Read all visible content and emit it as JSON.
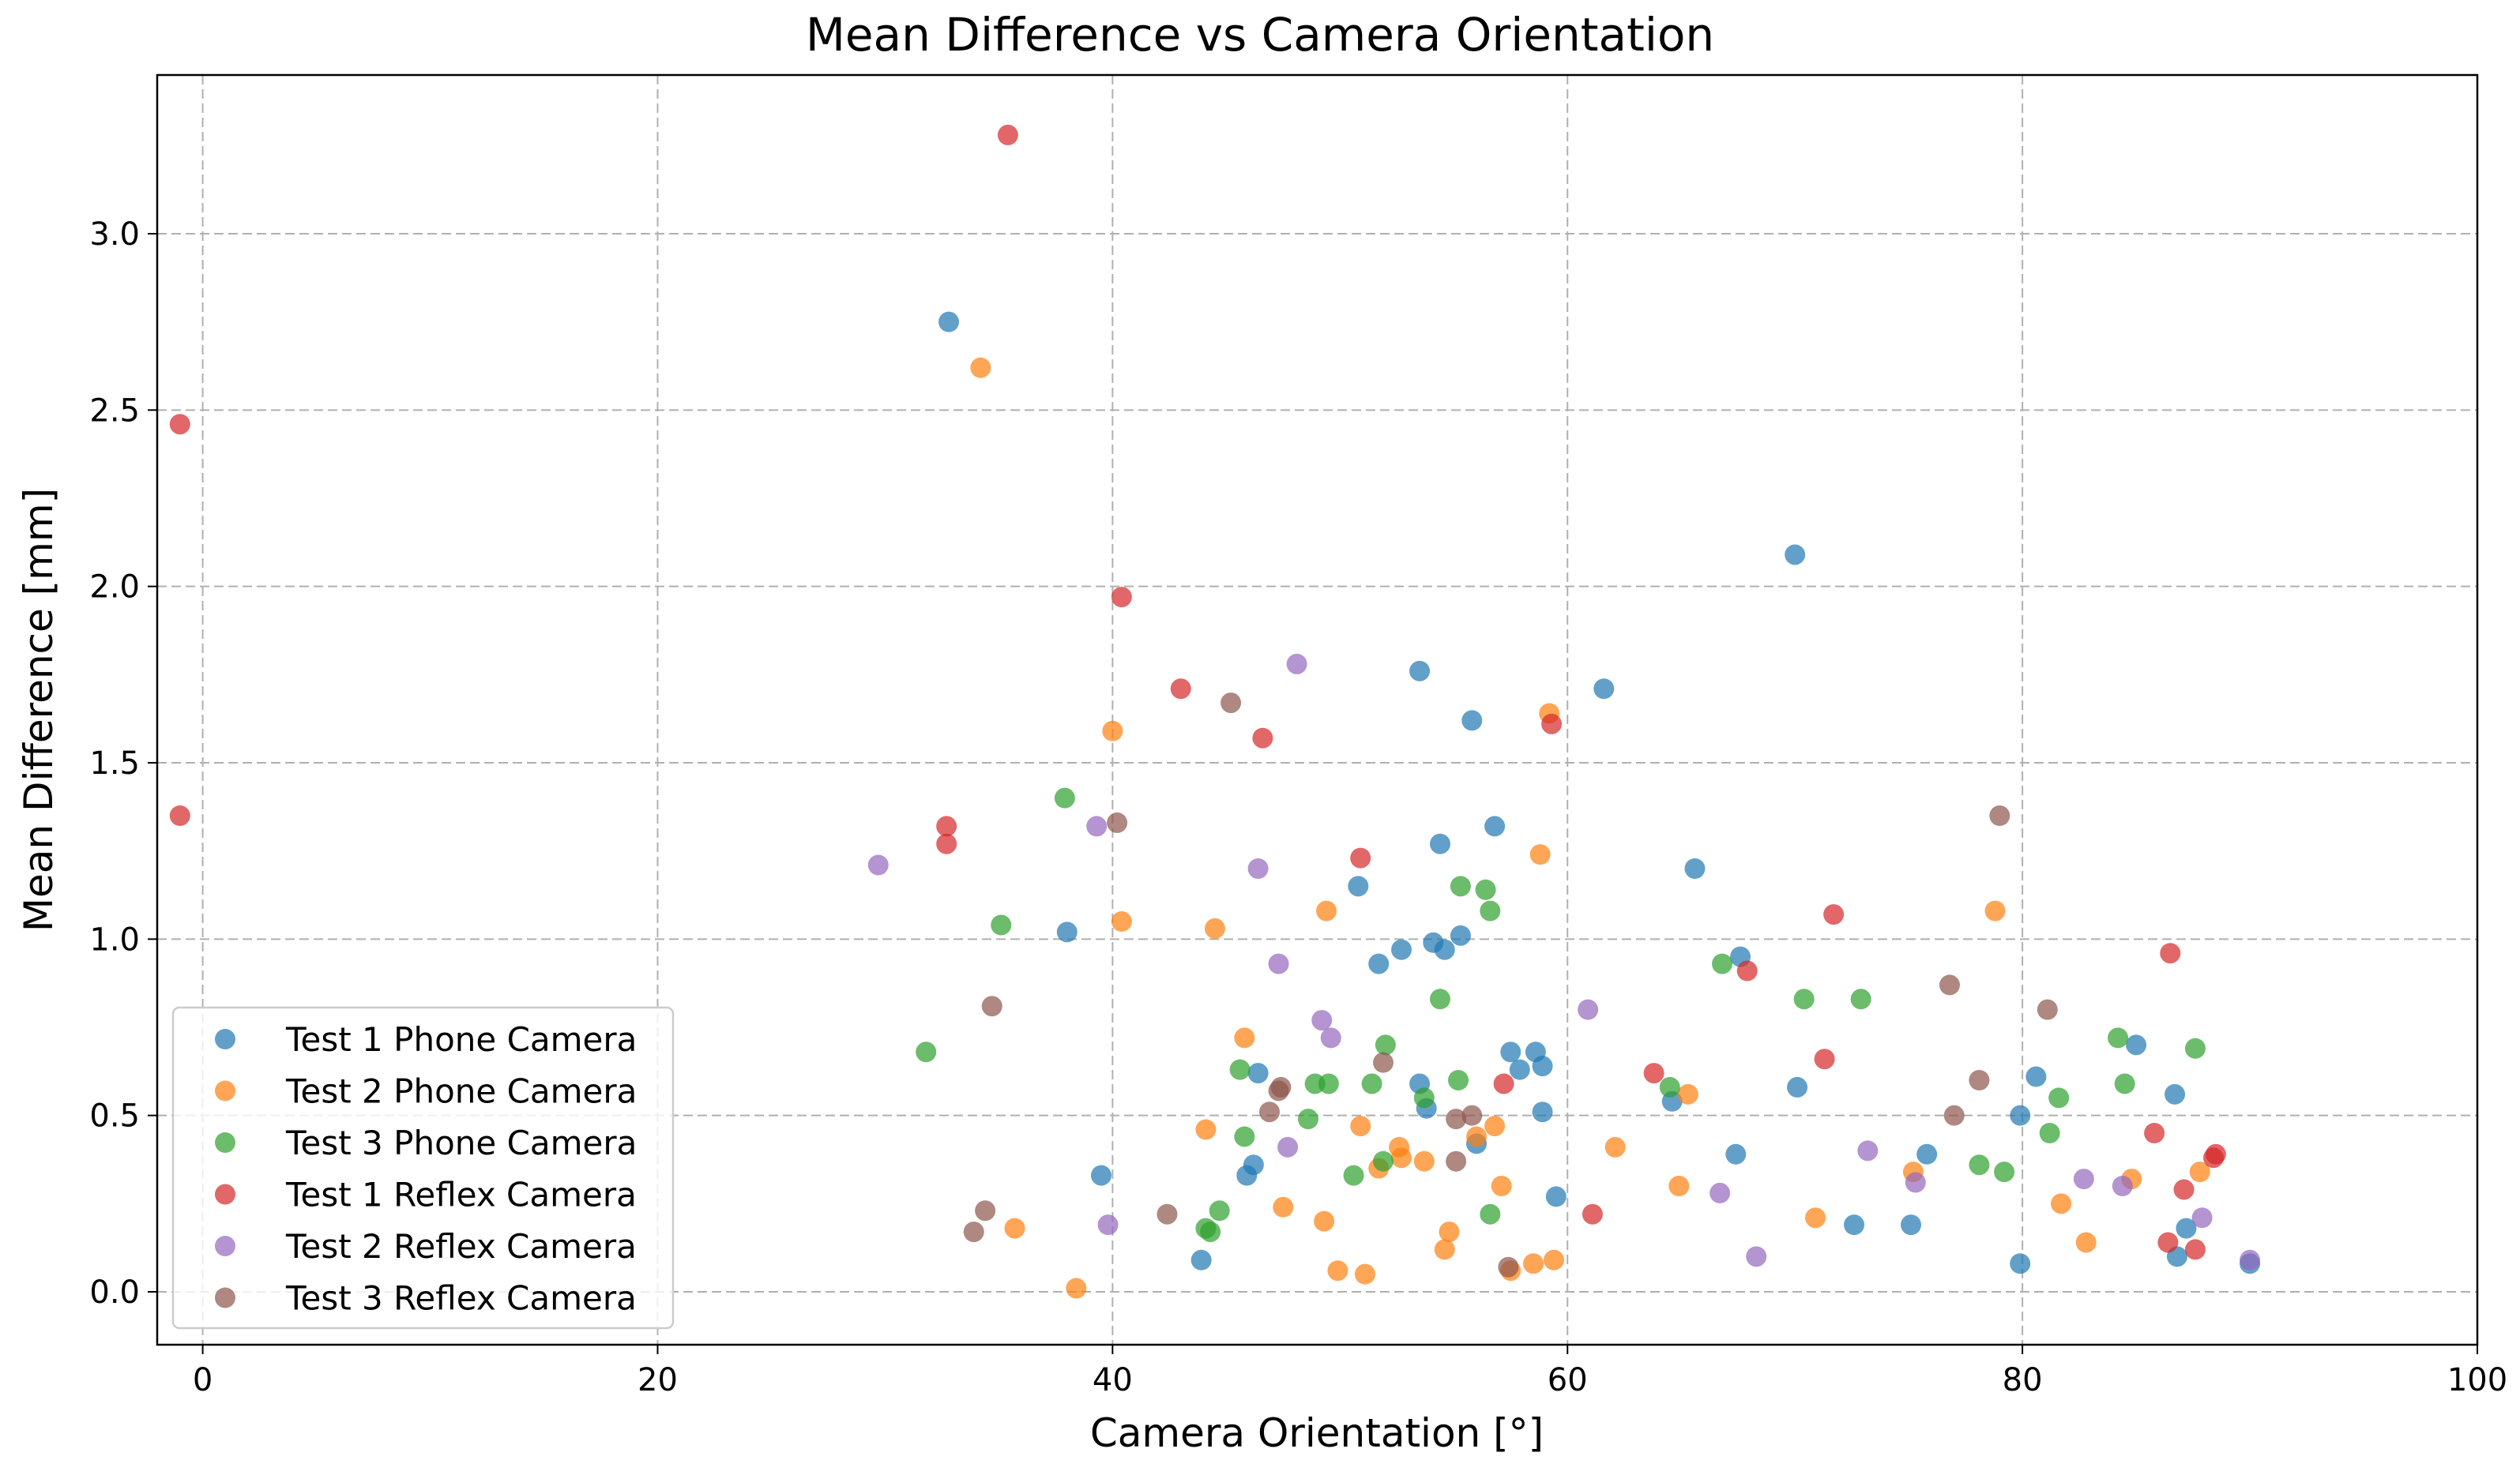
{
  "chart_data": {
    "type": "scatter",
    "title": "Mean Difference vs Camera Orientation",
    "xlabel": "Camera Orientation [°]",
    "ylabel": "Mean Difference [mm]",
    "xlim": [
      -2,
      100
    ],
    "ylim": [
      -0.15,
      3.45
    ],
    "xticks": [
      0,
      20,
      40,
      60,
      80,
      100
    ],
    "yticks": [
      0.0,
      0.5,
      1.0,
      1.5,
      2.0,
      2.5,
      3.0
    ],
    "xtick_labels": [
      "0",
      "20",
      "40",
      "60",
      "80",
      "100"
    ],
    "ytick_labels": [
      "0.0",
      "0.5",
      "1.0",
      "1.5",
      "2.0",
      "2.5",
      "3.0"
    ],
    "grid": true,
    "legend_position": "lower-left",
    "series": [
      {
        "name": "Test 1 Phone Camera",
        "color": "#1f77b4",
        "points": [
          [
            32.8,
            2.75
          ],
          [
            38,
            1.02
          ],
          [
            39.5,
            0.33
          ],
          [
            43.9,
            0.09
          ],
          [
            45.9,
            0.33
          ],
          [
            46.2,
            0.36
          ],
          [
            46.4,
            0.62
          ],
          [
            50.8,
            1.15
          ],
          [
            51.7,
            0.93
          ],
          [
            52.7,
            0.97
          ],
          [
            53.5,
            1.76
          ],
          [
            53.5,
            0.59
          ],
          [
            53.8,
            0.52
          ],
          [
            54.1,
            0.99
          ],
          [
            54.4,
            1.27
          ],
          [
            54.6,
            0.97
          ],
          [
            55.3,
            1.01
          ],
          [
            55.8,
            1.62
          ],
          [
            56,
            0.42
          ],
          [
            56.8,
            1.32
          ],
          [
            57.5,
            0.68
          ],
          [
            57.9,
            0.63
          ],
          [
            58.6,
            0.68
          ],
          [
            58.9,
            0.64
          ],
          [
            58.9,
            0.51
          ],
          [
            59.5,
            0.27
          ],
          [
            61.6,
            1.71
          ],
          [
            64.6,
            0.54
          ],
          [
            65.6,
            1.2
          ],
          [
            67.4,
            0.39
          ],
          [
            67.6,
            0.95
          ],
          [
            70.1,
            0.58
          ],
          [
            70,
            2.09
          ],
          [
            72.6,
            0.19
          ],
          [
            75.1,
            0.19
          ],
          [
            75.8,
            0.39
          ],
          [
            79.9,
            0.5
          ],
          [
            79.9,
            0.08
          ],
          [
            80.6,
            0.61
          ],
          [
            86.7,
            0.56
          ],
          [
            86.8,
            0.1
          ],
          [
            87.2,
            0.18
          ],
          [
            85,
            0.7
          ],
          [
            90,
            0.08
          ]
        ]
      },
      {
        "name": "Test 2 Phone Camera",
        "color": "#ff7f0e",
        "points": [
          [
            34.2,
            2.62
          ],
          [
            35.7,
            0.18
          ],
          [
            38.4,
            0.01
          ],
          [
            40,
            1.59
          ],
          [
            40.4,
            1.05
          ],
          [
            44.1,
            0.46
          ],
          [
            44.5,
            1.03
          ],
          [
            45.8,
            0.72
          ],
          [
            47.5,
            0.24
          ],
          [
            49.3,
            0.2
          ],
          [
            49.4,
            1.08
          ],
          [
            49.9,
            0.06
          ],
          [
            50.9,
            0.47
          ],
          [
            51.1,
            0.05
          ],
          [
            51.7,
            0.35
          ],
          [
            52.6,
            0.41
          ],
          [
            52.7,
            0.38
          ],
          [
            53.7,
            0.37
          ],
          [
            54.6,
            0.12
          ],
          [
            54.8,
            0.17
          ],
          [
            56,
            0.44
          ],
          [
            56.8,
            0.47
          ],
          [
            57.1,
            0.3
          ],
          [
            57.5,
            0.06
          ],
          [
            58.5,
            0.08
          ],
          [
            58.8,
            1.24
          ],
          [
            59.2,
            1.64
          ],
          [
            59.4,
            0.09
          ],
          [
            62.1,
            0.41
          ],
          [
            64.9,
            0.3
          ],
          [
            65.3,
            0.56
          ],
          [
            70.9,
            0.21
          ],
          [
            75.2,
            0.34
          ],
          [
            78.8,
            1.08
          ],
          [
            81.7,
            0.25
          ],
          [
            82.8,
            0.14
          ],
          [
            84.8,
            0.32
          ],
          [
            87.8,
            0.34
          ]
        ]
      },
      {
        "name": "Test 3 Phone Camera",
        "color": "#2ca02c",
        "points": [
          [
            31.8,
            0.68
          ],
          [
            35.1,
            1.04
          ],
          [
            37.9,
            1.4
          ],
          [
            44.1,
            0.18
          ],
          [
            44.3,
            0.17
          ],
          [
            44.7,
            0.23
          ],
          [
            45.6,
            0.63
          ],
          [
            45.8,
            0.44
          ],
          [
            48.6,
            0.49
          ],
          [
            48.9,
            0.59
          ],
          [
            49.5,
            0.59
          ],
          [
            50.6,
            0.33
          ],
          [
            51.4,
            0.59
          ],
          [
            51.9,
            0.37
          ],
          [
            52,
            0.7
          ],
          [
            53.7,
            0.55
          ],
          [
            54.4,
            0.83
          ],
          [
            55.3,
            1.15
          ],
          [
            55.2,
            0.6
          ],
          [
            56.4,
            1.14
          ],
          [
            56.6,
            1.08
          ],
          [
            56.6,
            0.22
          ],
          [
            64.5,
            0.58
          ],
          [
            66.8,
            0.93
          ],
          [
            70.4,
            0.83
          ],
          [
            72.9,
            0.83
          ],
          [
            78.1,
            0.36
          ],
          [
            79.2,
            0.34
          ],
          [
            81.2,
            0.45
          ],
          [
            81.6,
            0.55
          ],
          [
            84.2,
            0.72
          ],
          [
            84.5,
            0.59
          ],
          [
            87.6,
            0.69
          ]
        ]
      },
      {
        "name": "Test 1 Reflex Camera",
        "color": "#d62728",
        "points": [
          [
            -1,
            2.46
          ],
          [
            -1,
            1.35
          ],
          [
            32.7,
            1.32
          ],
          [
            32.7,
            1.27
          ],
          [
            35.4,
            3.28
          ],
          [
            40.4,
            1.97
          ],
          [
            43,
            1.71
          ],
          [
            46.6,
            1.57
          ],
          [
            50.9,
            1.23
          ],
          [
            57.2,
            0.59
          ],
          [
            59.3,
            1.61
          ],
          [
            61.1,
            0.22
          ],
          [
            63.8,
            0.62
          ],
          [
            67.9,
            0.91
          ],
          [
            71.3,
            0.66
          ],
          [
            71.7,
            1.07
          ],
          [
            85.8,
            0.45
          ],
          [
            86.4,
            0.14
          ],
          [
            86.5,
            0.96
          ],
          [
            87.1,
            0.29
          ],
          [
            87.6,
            0.12
          ],
          [
            88.4,
            0.38
          ],
          [
            88.5,
            0.39
          ]
        ]
      },
      {
        "name": "Test 2 Reflex Camera",
        "color": "#9467bd",
        "points": [
          [
            29.7,
            1.21
          ],
          [
            39.3,
            1.32
          ],
          [
            39.8,
            0.19
          ],
          [
            46.4,
            1.2
          ],
          [
            47.3,
            0.93
          ],
          [
            47.7,
            0.41
          ],
          [
            48.1,
            1.78
          ],
          [
            49.2,
            0.77
          ],
          [
            49.6,
            0.72
          ],
          [
            60.9,
            0.8
          ],
          [
            66.7,
            0.28
          ],
          [
            68.3,
            0.1
          ],
          [
            73.2,
            0.4
          ],
          [
            75.3,
            0.31
          ],
          [
            82.7,
            0.32
          ],
          [
            84.4,
            0.3
          ],
          [
            87.9,
            0.21
          ],
          [
            90,
            0.09
          ]
        ]
      },
      {
        "name": "Test 3 Reflex Camera",
        "color": "#8c564b",
        "points": [
          [
            33.9,
            0.17
          ],
          [
            34.4,
            0.23
          ],
          [
            34.7,
            0.81
          ],
          [
            40.2,
            1.33
          ],
          [
            42.4,
            0.22
          ],
          [
            45.2,
            1.67
          ],
          [
            46.9,
            0.51
          ],
          [
            47.3,
            0.57
          ],
          [
            47.4,
            0.58
          ],
          [
            51.9,
            0.65
          ],
          [
            55.1,
            0.37
          ],
          [
            55.1,
            0.49
          ],
          [
            55.8,
            0.5
          ],
          [
            57.4,
            0.07
          ],
          [
            76.8,
            0.87
          ],
          [
            77,
            0.5
          ],
          [
            78.1,
            0.6
          ],
          [
            79,
            1.35
          ],
          [
            81.1,
            0.8
          ]
        ]
      }
    ]
  }
}
